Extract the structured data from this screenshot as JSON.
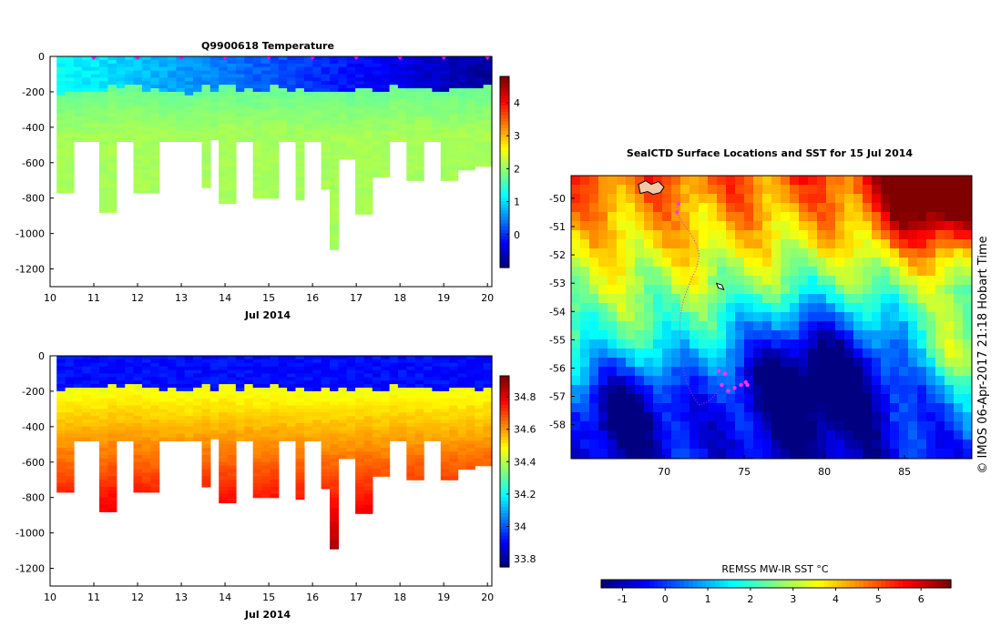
{
  "chart_data": [
    {
      "type": "heatmap",
      "id": "temperature-section",
      "title": "Q9900618  Temperature",
      "xlabel": "Jul 2014",
      "ylabel": "",
      "xlim": [
        10,
        20.1
      ],
      "ylim": [
        -1300,
        0
      ],
      "x_ticks": [
        10,
        11,
        12,
        13,
        14,
        15,
        16,
        17,
        18,
        19,
        20
      ],
      "y_ticks": [
        0,
        -200,
        -400,
        -600,
        -800,
        -1000,
        -1200
      ],
      "colorbar": {
        "min": -1,
        "max": 4.8,
        "ticks": [
          0,
          1,
          2,
          3,
          4
        ]
      },
      "variable": "temperature",
      "surface_markers_x": [
        11,
        12,
        13,
        14,
        15,
        16,
        17,
        18,
        19,
        20
      ]
    },
    {
      "type": "heatmap",
      "id": "salinity-section",
      "title": "",
      "xlabel": "Jul 2014",
      "ylabel": "",
      "xlim": [
        10,
        20.1
      ],
      "ylim": [
        -1300,
        0
      ],
      "x_ticks": [
        10,
        11,
        12,
        13,
        14,
        15,
        16,
        17,
        18,
        19,
        20
      ],
      "y_ticks": [
        0,
        -200,
        -400,
        -600,
        -800,
        -1000,
        -1200
      ],
      "colorbar": {
        "min": 33.75,
        "max": 34.93,
        "ticks": [
          33.8,
          34,
          34.2,
          34.4,
          34.6,
          34.8
        ]
      },
      "variable": "salinity"
    },
    {
      "type": "heatmap",
      "id": "sst-map",
      "title": "SealCTD Surface Locations and SST for 15 Jul 2014",
      "xlabel": "",
      "ylabel": "",
      "xlim": [
        64.2,
        89.2
      ],
      "ylim": [
        -59.2,
        -49.2
      ],
      "x_ticks": [
        70,
        75,
        80,
        85
      ],
      "y_ticks": [
        -50,
        -51,
        -52,
        -53,
        -54,
        -55,
        -56,
        -57,
        -58
      ],
      "colorbar": {
        "label": "REMSS MW-IR SST °C",
        "min": -1.5,
        "max": 6.7,
        "ticks": [
          -1,
          0,
          1,
          2,
          3,
          4,
          5,
          6
        ]
      },
      "track_lon_lat": [
        [
          70.8,
          -50.3
        ],
        [
          70.9,
          -50.6
        ],
        [
          71.2,
          -50.9
        ],
        [
          71.6,
          -51.2
        ],
        [
          72.0,
          -51.6
        ],
        [
          72.2,
          -52.0
        ],
        [
          72.0,
          -52.5
        ],
        [
          71.6,
          -53.0
        ],
        [
          71.2,
          -53.6
        ],
        [
          71.0,
          -54.2
        ],
        [
          71.0,
          -54.8
        ],
        [
          71.0,
          -55.4
        ],
        [
          71.2,
          -56.0
        ],
        [
          71.4,
          -56.5
        ],
        [
          71.8,
          -57.0
        ],
        [
          72.2,
          -57.3
        ],
        [
          72.7,
          -57.2
        ],
        [
          73.1,
          -57.0
        ],
        [
          73.4,
          -56.8
        ]
      ],
      "recent_positions_lon_lat": [
        [
          73.4,
          -56.1
        ],
        [
          73.8,
          -56.2
        ],
        [
          73.6,
          -56.6
        ],
        [
          74.0,
          -56.8
        ],
        [
          74.4,
          -56.7
        ],
        [
          74.8,
          -56.6
        ],
        [
          75.1,
          -56.5
        ],
        [
          75.2,
          -56.6
        ],
        [
          70.9,
          -50.2
        ],
        [
          70.8,
          -50.5
        ]
      ],
      "islands_lon_lat": [
        [
          69.2,
          -49.7
        ],
        [
          73.5,
          -53.1
        ]
      ],
      "side_label": "© IMOS 06-Apr-2017 21:18 Hobart Time"
    }
  ]
}
